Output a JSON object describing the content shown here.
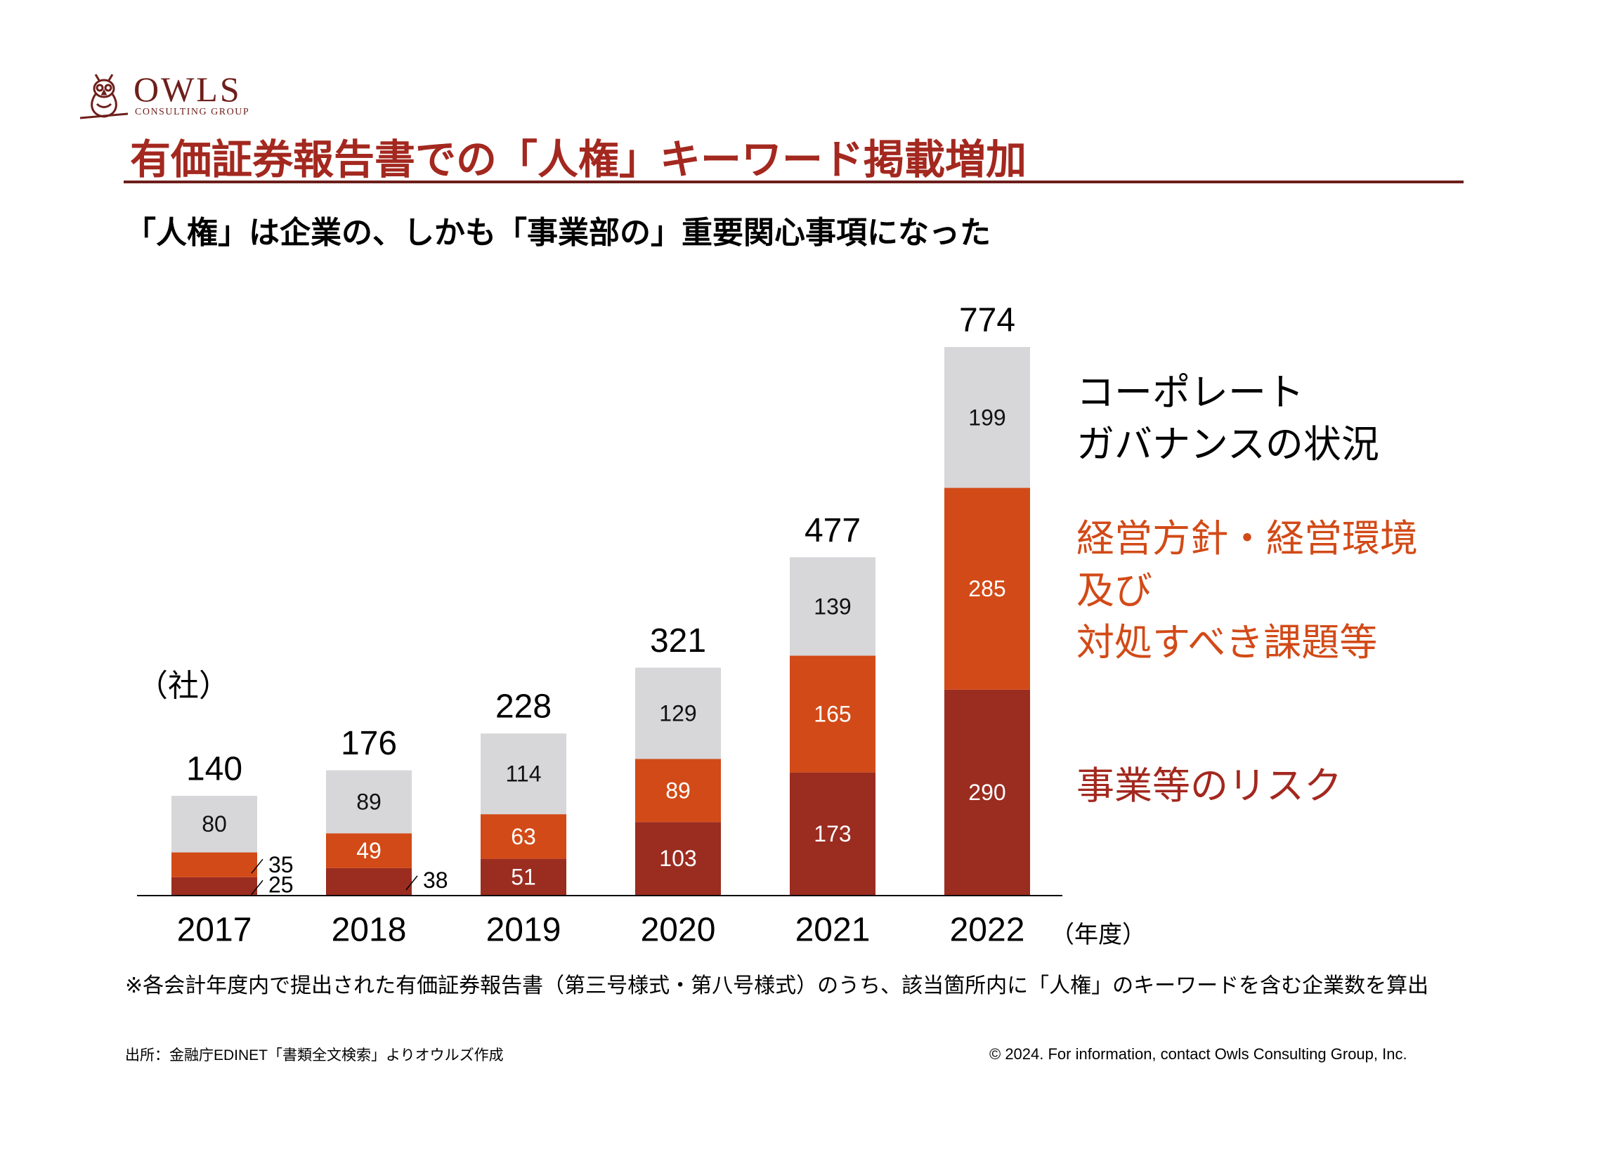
{
  "brand": {
    "name": "OWLS",
    "subname": "CONSULTING GROUP",
    "color": "#6e1f1b"
  },
  "title": "有価証券報告書での「人権」キーワード掲載増加",
  "subtitle": "「人権」は企業の、しかも「事業部の」重要関心事項になった",
  "unit_label": "（社）",
  "year_unit_label": "（年度）",
  "legend": {
    "gray": "コーポレート\nガバナンスの状況",
    "orange": "経営方針・経営環境\n及び\n対処すべき課題等",
    "red": "事業等のリスク"
  },
  "footnote": "※各会計年度内で提出された有価証券報告書（第三号様式・第八号様式）のうち、該当箇所内に「人権」のキーワードを含む企業数を算出",
  "source": "出所：金融庁EDINET「書類全文検索」よりオウルズ作成",
  "copyright": "© 2024. For information, contact Owls Consulting Group, Inc.",
  "colors": {
    "red": "#9b2c20",
    "orange": "#d24a17",
    "gray": "#d7d7d9",
    "accent": "#a3281f"
  },
  "chart_data": {
    "type": "bar",
    "stacked": true,
    "categories": [
      "2017",
      "2018",
      "2019",
      "2020",
      "2021",
      "2022"
    ],
    "series": [
      {
        "name": "事業等のリスク",
        "color": "#9b2c20",
        "values": [
          25,
          38,
          51,
          103,
          173,
          290
        ]
      },
      {
        "name": "経営方針・経営環境及び対処すべき課題等",
        "color": "#d24a17",
        "values": [
          35,
          49,
          63,
          89,
          165,
          285
        ]
      },
      {
        "name": "コーポレートガバナンスの状況",
        "color": "#d7d7d9",
        "values": [
          80,
          89,
          114,
          129,
          139,
          199
        ]
      }
    ],
    "totals": [
      140,
      176,
      228,
      321,
      477,
      774
    ],
    "ylabel": "（社）",
    "xlabel": "（年度）",
    "ylim": [
      0,
      774
    ],
    "grid": false,
    "legend_position": "right"
  }
}
